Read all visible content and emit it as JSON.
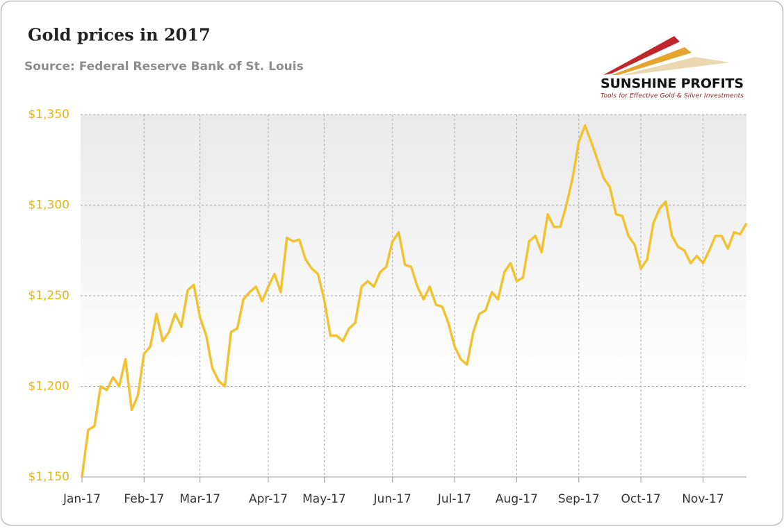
{
  "chart_data": {
    "type": "line",
    "title": "Gold prices in 2017",
    "subtitle": "Source: Federal Reserve Bank of St. Louis",
    "logo": {
      "name": "SUNSHINE PROFITS",
      "tagline": "Tools for Effective Gold & Silver Investments"
    },
    "categories": [
      "Jan-17",
      null,
      null,
      null,
      null,
      null,
      null,
      null,
      null,
      null,
      "Feb-17",
      null,
      null,
      null,
      null,
      null,
      null,
      null,
      null,
      "Mar-17",
      null,
      null,
      null,
      null,
      null,
      null,
      null,
      null,
      null,
      null,
      "Apr-17",
      null,
      null,
      null,
      null,
      null,
      null,
      null,
      null,
      "May-17",
      null,
      null,
      null,
      null,
      null,
      null,
      null,
      null,
      null,
      null,
      "Jun-17",
      null,
      null,
      null,
      null,
      null,
      null,
      null,
      null,
      null,
      "Jul-17",
      null,
      null,
      null,
      null,
      null,
      null,
      null,
      null,
      null,
      "Aug-17",
      null,
      null,
      null,
      null,
      null,
      null,
      null,
      null,
      null,
      "Sep-17",
      null,
      null,
      null,
      null,
      null,
      null,
      null,
      null,
      null,
      "Oct-17",
      null,
      null,
      null,
      null,
      null,
      null,
      null,
      null,
      null,
      "Nov-17",
      null,
      null,
      null,
      null,
      null,
      null,
      null
    ],
    "series": [
      {
        "name": "Gold price",
        "color": "#f2c230",
        "values": [
          1150,
          1176,
          1178,
          1200,
          1198,
          1205,
          1200,
          1215,
          1187,
          1195,
          1218,
          1222,
          1240,
          1225,
          1230,
          1240,
          1233,
          1253,
          1256,
          1238,
          1228,
          1210,
          1203,
          1200,
          1230,
          1232,
          1248,
          1252,
          1255,
          1247,
          1255,
          1262,
          1252,
          1282,
          1280,
          1281,
          1270,
          1265,
          1262,
          1248,
          1228,
          1228,
          1225,
          1232,
          1235,
          1255,
          1258,
          1255,
          1263,
          1266,
          1280,
          1285,
          1267,
          1266,
          1255,
          1248,
          1255,
          1245,
          1244,
          1235,
          1222,
          1215,
          1212,
          1230,
          1240,
          1242,
          1252,
          1248,
          1263,
          1268,
          1258,
          1260,
          1280,
          1283,
          1274,
          1295,
          1288,
          1288,
          1300,
          1315,
          1335,
          1344,
          1335,
          1325,
          1315,
          1310,
          1295,
          1294,
          1283,
          1278,
          1265,
          1270,
          1290,
          1298,
          1302,
          1283,
          1277,
          1275,
          1268,
          1272,
          1268,
          1275,
          1283,
          1283,
          1276,
          1285,
          1284,
          1290
        ]
      }
    ],
    "ylim": [
      1150,
      1350
    ],
    "yticks": [
      {
        "value": 1150,
        "label": "$1,150"
      },
      {
        "value": 1200,
        "label": "$1,200"
      },
      {
        "value": 1250,
        "label": "$1,250"
      },
      {
        "value": 1300,
        "label": "$1,300"
      },
      {
        "value": 1350,
        "label": "$1,350"
      }
    ],
    "grid": true
  }
}
